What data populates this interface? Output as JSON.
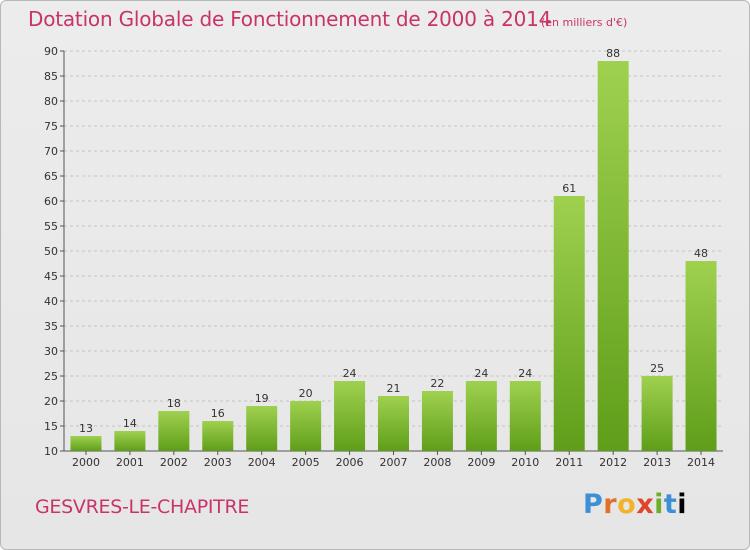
{
  "chart_data": {
    "type": "bar",
    "title": "Dotation Globale de Fonctionnement de 2000 à 2014",
    "subtitle": "(en milliers d'€)",
    "location": "GESVRES-LE-CHAPITRE",
    "categories": [
      "2000",
      "2001",
      "2002",
      "2003",
      "2004",
      "2005",
      "2006",
      "2007",
      "2008",
      "2009",
      "2010",
      "2011",
      "2012",
      "2013",
      "2014"
    ],
    "values": [
      13,
      14,
      18,
      16,
      19,
      20,
      24,
      21,
      22,
      24,
      24,
      61,
      88,
      25,
      48
    ],
    "ylim": [
      10,
      90
    ],
    "yticks": [
      10,
      15,
      20,
      25,
      30,
      35,
      40,
      45,
      50,
      55,
      60,
      65,
      70,
      75,
      80,
      85,
      90
    ],
    "xlabel": "",
    "ylabel": "",
    "grid": true,
    "legend": "none",
    "colors": {
      "bar_top": "#9fd14f",
      "bar_bottom": "#5f9e1a",
      "text_accent": "#c8336a"
    }
  },
  "logo": {
    "letters": [
      "P",
      "r",
      "o",
      "x",
      "i",
      "t",
      "i"
    ]
  }
}
